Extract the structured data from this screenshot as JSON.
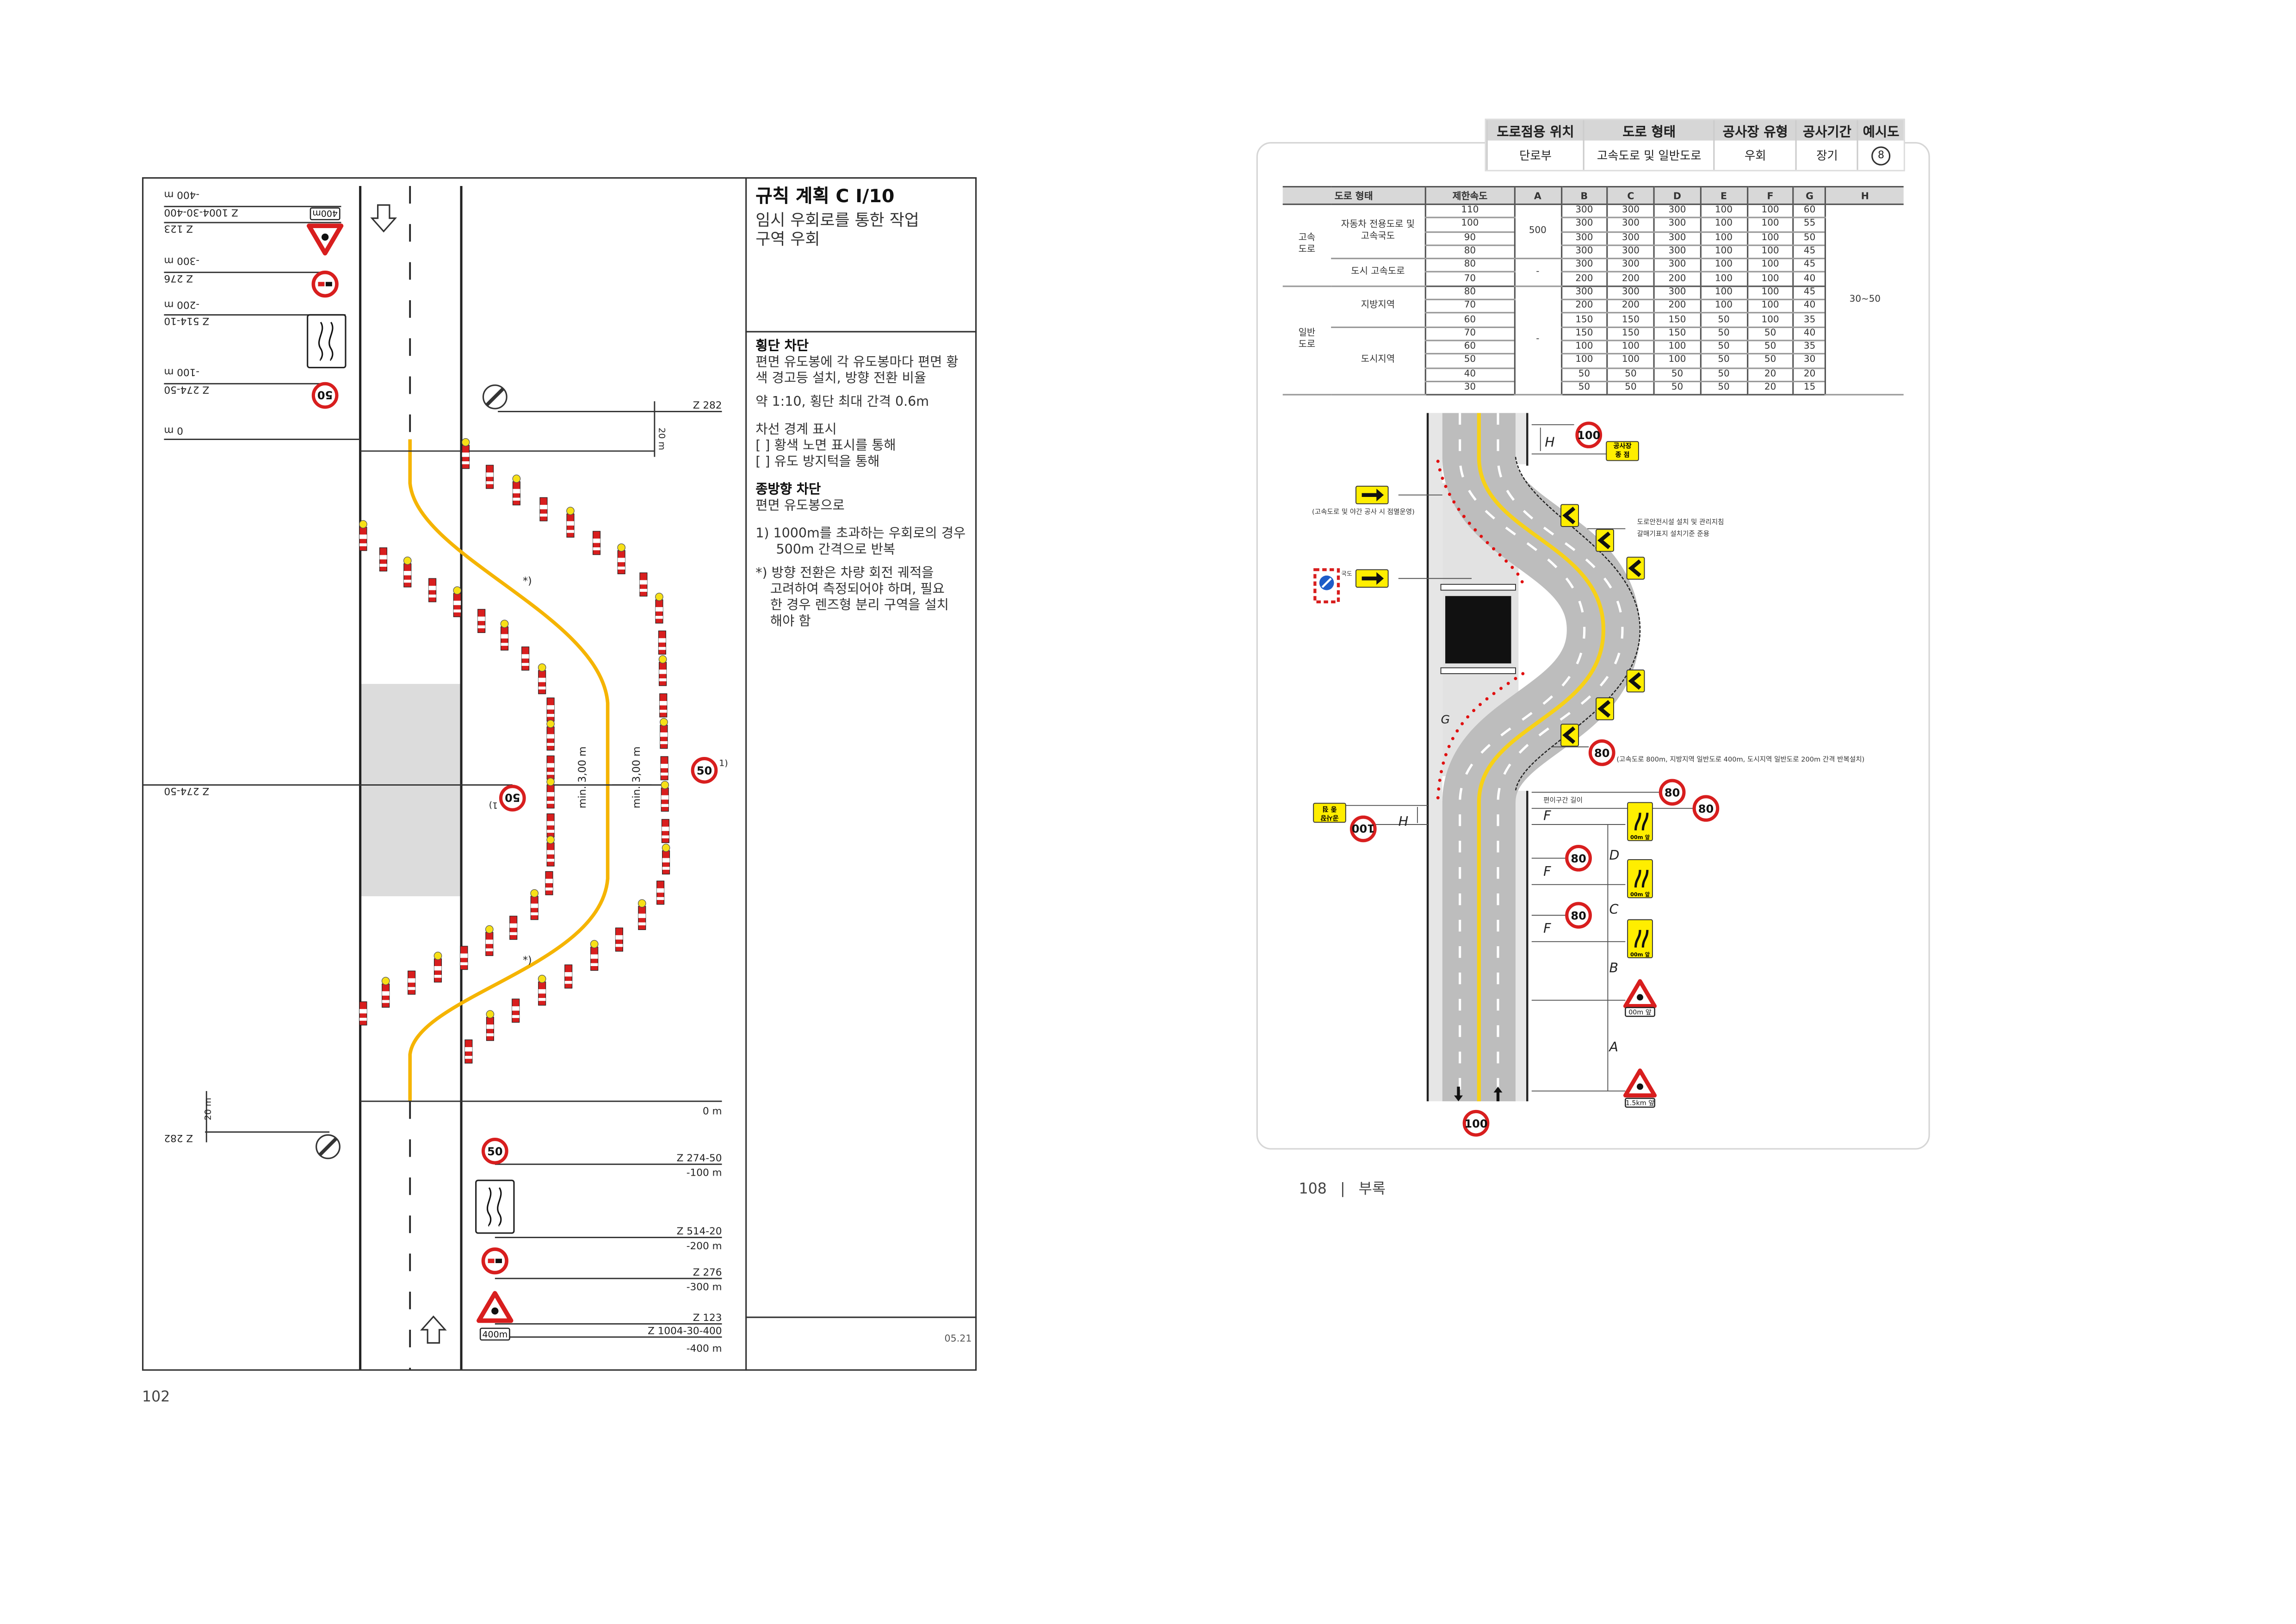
{
  "left_page": {
    "title": "규칙 계획 C I/10",
    "subtitle_line1": "임시 우회로를 통한 작업",
    "subtitle_line2": "구역 우회",
    "section1_title": "횡단 차단",
    "section1_line1": "편면 유도봉에 각 유도봉마다 편면 황",
    "section1_line2": "색 경고등 설치, 방향 전환 비율",
    "section1_line3": "약 1:10, 횡단 최대 간격 0.6m",
    "lane_marking_title": "차선 경계 표시",
    "lane_marking_option1": "[ ] 황색 노면 표시를 통해",
    "lane_marking_option2": "[ ] 유도 방지턱을 통해",
    "section2_title": "종방향 차단",
    "section2_text": "편면 유도봉으로",
    "note1_line1": "1) 1000m를 초과하는 우회로의 경우",
    "note1_line2": "500m 간격으로 반복",
    "note2_line1": "*)  방향 전환은 차량 회전 궤적을",
    "note2_line2": "고려하여 측정되어야 하며, 필요",
    "note2_line3": "한 경우 렌즈형 분리 구역을 설치",
    "note2_line4": "해야 함",
    "version": "05.21",
    "page_number": "102"
  },
  "left_diagram": {
    "top_labels": {
      "d400": "-400 m",
      "z1004": "Z 1004-30-400",
      "z123": "Z 123",
      "d300": "-300 m",
      "z276": "Z 276",
      "d200": "-200 m",
      "z514": "Z 514-10",
      "d100": "-100 m",
      "z274": "Z 274-50",
      "d0": "0 m",
      "z282": "Z 282",
      "twenty": "20 m",
      "z274_mid": "Z 274-50"
    },
    "bottom_labels": {
      "d0": "0 m",
      "z274": "Z 274-50",
      "d100": "-100 m",
      "z514": "Z 514-20",
      "d200": "-200 m",
      "z276": "Z 276",
      "d300": "-300 m",
      "z123": "Z 123",
      "z1004": "Z 1004-30-400",
      "d400": "-400 m",
      "z282": "Z 282",
      "twenty": "20 m"
    },
    "speed_sign": "50",
    "plate_400": "400m",
    "footnote_mark": "1)",
    "turn_note": "*)",
    "min_width": "min. 3,00 m",
    "colors": {
      "detour_line": "#f5b400",
      "sign_red": "#d81e1e",
      "work_area": "#dcdcdc"
    }
  },
  "right_page": {
    "header": {
      "columns": [
        "도로점용 위치",
        "도로 형태",
        "공사장 유형",
        "공사기간",
        "예시도"
      ],
      "values": [
        "단로부",
        "고속도로 및 일반도로",
        "우회",
        "장기",
        "8"
      ]
    },
    "table": {
      "columns": [
        "도로 형태",
        "제한속도",
        "A",
        "B",
        "C",
        "D",
        "E",
        "F",
        "G",
        "H"
      ],
      "groups": [
        {
          "name": "고속\n도로",
          "subgroups": [
            {
              "name": "자동차 전용도로 및\n고속국도",
              "A": "500",
              "rows": [
                {
                  "speed": "110",
                  "values": [
                    "300",
                    "300",
                    "300",
                    "100",
                    "100",
                    "60"
                  ]
                },
                {
                  "speed": "100",
                  "values": [
                    "300",
                    "300",
                    "300",
                    "100",
                    "100",
                    "55"
                  ]
                },
                {
                  "speed": "90",
                  "values": [
                    "300",
                    "300",
                    "300",
                    "100",
                    "100",
                    "50"
                  ]
                },
                {
                  "speed": "80",
                  "values": [
                    "300",
                    "300",
                    "300",
                    "100",
                    "100",
                    "45"
                  ]
                }
              ]
            },
            {
              "name": "도시 고속도로",
              "A": "-",
              "rows": [
                {
                  "speed": "80",
                  "values": [
                    "300",
                    "300",
                    "300",
                    "100",
                    "100",
                    "45"
                  ]
                },
                {
                  "speed": "70",
                  "values": [
                    "200",
                    "200",
                    "200",
                    "100",
                    "100",
                    "40"
                  ]
                }
              ]
            }
          ]
        },
        {
          "name": "일반\n도로",
          "A": "-",
          "subgroups": [
            {
              "name": "지방지역",
              "rows": [
                {
                  "speed": "80",
                  "values": [
                    "300",
                    "300",
                    "300",
                    "100",
                    "100",
                    "45"
                  ]
                },
                {
                  "speed": "70",
                  "values": [
                    "200",
                    "200",
                    "200",
                    "100",
                    "100",
                    "40"
                  ]
                },
                {
                  "speed": "60",
                  "values": [
                    "150",
                    "150",
                    "150",
                    "50",
                    "100",
                    "35"
                  ]
                }
              ]
            },
            {
              "name": "도시지역",
              "rows": [
                {
                  "speed": "70",
                  "values": [
                    "150",
                    "150",
                    "150",
                    "50",
                    "50",
                    "40"
                  ]
                },
                {
                  "speed": "60",
                  "values": [
                    "100",
                    "100",
                    "100",
                    "50",
                    "50",
                    "35"
                  ]
                },
                {
                  "speed": "50",
                  "values": [
                    "100",
                    "100",
                    "100",
                    "50",
                    "50",
                    "30"
                  ]
                },
                {
                  "speed": "40",
                  "values": [
                    "50",
                    "50",
                    "50",
                    "50",
                    "20",
                    "20"
                  ]
                },
                {
                  "speed": "30",
                  "values": [
                    "50",
                    "50",
                    "50",
                    "50",
                    "20",
                    "15"
                  ]
                }
              ]
            }
          ]
        }
      ],
      "H": "30~50"
    },
    "diagram": {
      "speed_100": "100",
      "speed_80": "80",
      "work_end_line1": "공사장",
      "work_end_line2": "종 점",
      "flashing_note": "(고속도로 및 야간 공사 시 점멸운영)",
      "national_road": "국도",
      "chevron_note_line1": "도로안전시설 설치 및 관리지침",
      "chevron_note_line2": "갈매기표지 설치기준 준용",
      "repeat_note": "(고속도로 800m, 지방지역 일반도로 400m, 도시지역 일반도로 200m 간격 반복설치)",
      "transition_length": "편이구간 길이",
      "dim_labels": {
        "H": "H",
        "F": "F",
        "D": "D",
        "C": "C",
        "B": "B",
        "A": "A",
        "G": "G"
      },
      "plate_00m": "00m 앞",
      "plate_15km": "1.5km 앞",
      "colors": {
        "road": "#bdbdbd",
        "shoulder": "#e6e6e6",
        "center_line": "#f7d117",
        "sign_yellow": "#ffee00"
      }
    },
    "page_number": "108",
    "section": "부록"
  }
}
